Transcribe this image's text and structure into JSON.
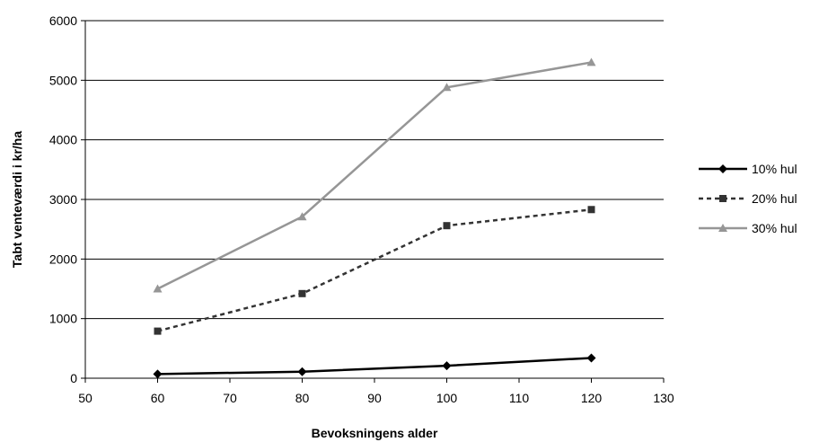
{
  "chart_data": {
    "type": "line",
    "xlabel": "Bevoksningens alder",
    "ylabel": "Tabt venteværdi i kr/ha",
    "xlim": [
      50,
      130
    ],
    "ylim": [
      0,
      6000
    ],
    "xticks": [
      50,
      60,
      70,
      80,
      90,
      100,
      110,
      120,
      130
    ],
    "yticks": [
      0,
      1000,
      2000,
      3000,
      4000,
      5000,
      6000
    ],
    "grid": "horizontal",
    "legend_position": "right",
    "x": [
      60,
      80,
      100,
      120
    ],
    "series": [
      {
        "name": "10% hul",
        "values": [
          70,
          110,
          210,
          340
        ],
        "color": "#000000",
        "dash": "solid",
        "marker": "diamond"
      },
      {
        "name": "20% hul",
        "values": [
          790,
          1420,
          2560,
          2830
        ],
        "color": "#333333",
        "dash": "dashed",
        "marker": "square"
      },
      {
        "name": "30% hul",
        "values": [
          1500,
          2710,
          4880,
          5300
        ],
        "color": "#969696",
        "dash": "solid",
        "marker": "triangle"
      }
    ]
  }
}
